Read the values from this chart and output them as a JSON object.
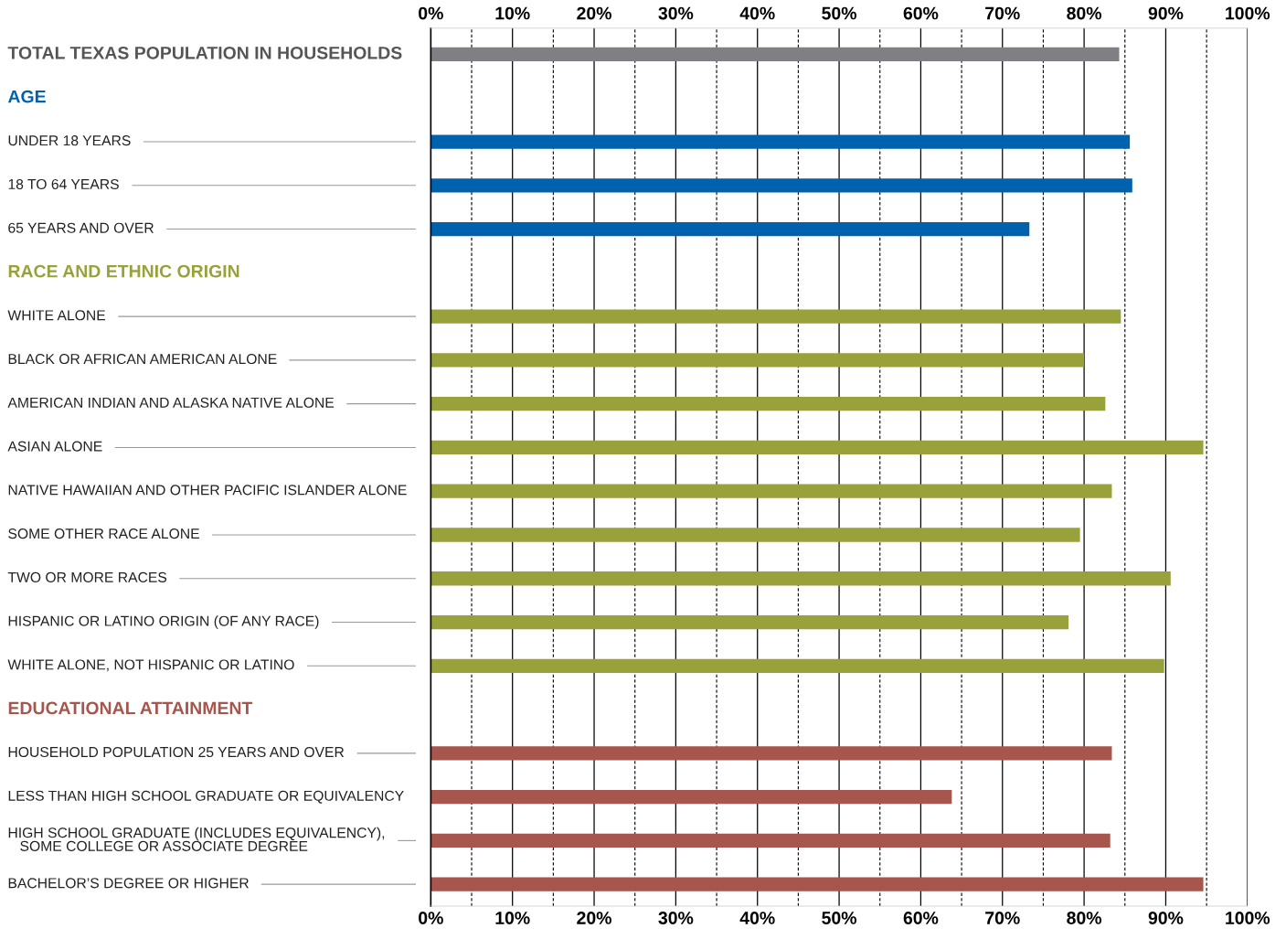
{
  "chart_data": {
    "type": "bar",
    "orientation": "horizontal",
    "categories": [
      "TOTAL TEXAS POPULATION IN HOUSEHOLDS",
      "AGE",
      "UNDER 18 YEARS",
      "18 TO 64 YEARS",
      "65 YEARS AND OVER",
      "RACE AND ETHNIC ORIGIN",
      "WHITE ALONE",
      "BLACK OR AFRICAN AMERICAN ALONE",
      "AMERICAN INDIAN AND ALASKA NATIVE ALONE",
      "ASIAN ALONE",
      "NATIVE HAWAIIAN AND OTHER PACIFIC ISLANDER ALONE",
      "SOME OTHER RACE ALONE",
      "TWO OR MORE RACES",
      "HISPANIC OR LATINO ORIGIN (OF ANY RACE)",
      "WHITE ALONE, NOT HISPANIC OR LATINO",
      "EDUCATIONAL ATTAINMENT",
      "HOUSEHOLD POPULATION 25 YEARS AND OVER",
      "LESS THAN HIGH SCHOOL GRADUATE OR EQUIVALENCY",
      "HIGH SCHOOL GRADUATE (INCLUDES EQUIVALENCY),\n   SOME COLLEGE OR ASSOCIATE DEGREE",
      "BACHELOR’S DEGREE OR HIGHER"
    ],
    "values": [
      84.3,
      null,
      85.6,
      85.9,
      73.3,
      null,
      84.5,
      80.0,
      82.6,
      94.6,
      83.4,
      79.5,
      90.6,
      78.1,
      89.8,
      null,
      83.4,
      63.8,
      83.2,
      94.6
    ],
    "colors": [
      "#808084",
      "#0061ad",
      "#0061ad",
      "#0061ad",
      "#0061ad",
      "#98a13a",
      "#98a13a",
      "#98a13a",
      "#98a13a",
      "#98a13a",
      "#98a13a",
      "#98a13a",
      "#98a13a",
      "#98a13a",
      "#98a13a",
      "#a6564c",
      "#a6564c",
      "#a6564c",
      "#a6564c",
      "#a6564c"
    ],
    "xlim": [
      0,
      100
    ],
    "xticks": [
      {
        "value": 0,
        "label": "0%"
      },
      {
        "value": 5,
        "label": null
      },
      {
        "value": 10,
        "label": "10%"
      },
      {
        "value": 15,
        "label": null
      },
      {
        "value": 20,
        "label": "20%"
      },
      {
        "value": 25,
        "label": null
      },
      {
        "value": 30,
        "label": "30%"
      },
      {
        "value": 35,
        "label": null
      },
      {
        "value": 40,
        "label": "40%"
      },
      {
        "value": 45,
        "label": null
      },
      {
        "value": 50,
        "label": "50%"
      },
      {
        "value": 55,
        "label": null
      },
      {
        "value": 60,
        "label": "60%"
      },
      {
        "value": 65,
        "label": null
      },
      {
        "value": 70,
        "label": "70%"
      },
      {
        "value": 75,
        "label": null
      },
      {
        "value": 80,
        "label": "80%"
      },
      {
        "value": 85,
        "label": null
      },
      {
        "value": 90,
        "label": "90%"
      },
      {
        "value": 95,
        "label": null
      },
      {
        "value": 100,
        "label": "100%"
      }
    ],
    "grid": "x"
  }
}
